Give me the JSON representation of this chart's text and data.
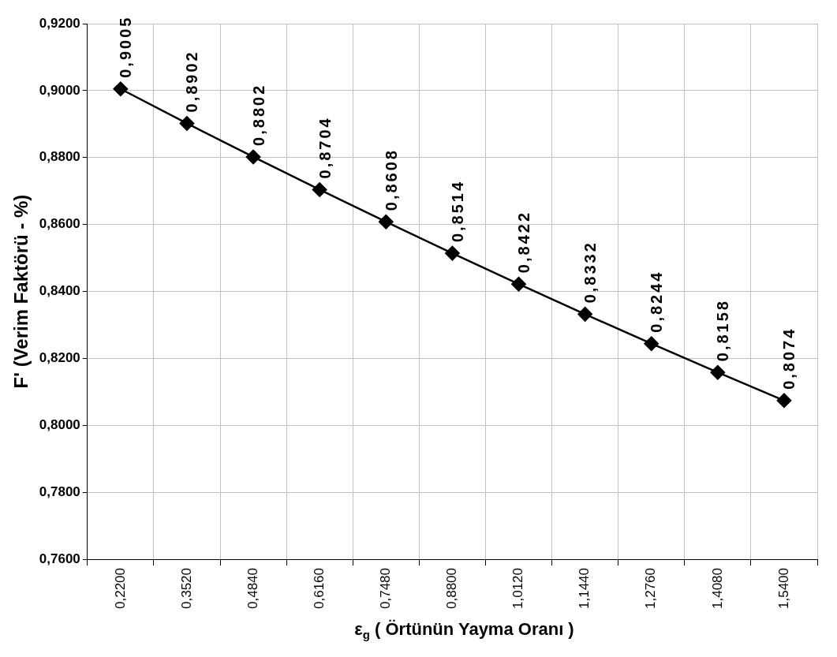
{
  "chart_data": {
    "type": "line",
    "xlabel": "ε$_{g}$ ( Örtünün Yayma Oranı )",
    "ylabel": "F' (Verim Faktörü - %)",
    "categories": [
      "0,2200",
      "0,3520",
      "0,4840",
      "0,6160",
      "0,7480",
      "0,8800",
      "1,0120",
      "1,1440",
      "1,2760",
      "1,4080",
      "1,5400"
    ],
    "series": [
      {
        "color": "#000000",
        "values": [
          0.9005,
          0.8902,
          0.8802,
          0.8704,
          0.8608,
          0.8514,
          0.8422,
          0.8332,
          0.8244,
          0.8158,
          0.8074
        ],
        "value_labels": [
          "0,9005",
          "0,8902",
          "0,8802",
          "0,8704",
          "0,8608",
          "0,8514",
          "0,8422",
          "0,8332",
          "0,8244",
          "0,8158",
          "0,8074"
        ]
      }
    ],
    "ylim": [
      0.76,
      0.92
    ],
    "yticks": [
      {
        "value": 0.76,
        "label": "0,7600"
      },
      {
        "value": 0.78,
        "label": "0,7800"
      },
      {
        "value": 0.8,
        "label": "0,8000"
      },
      {
        "value": 0.82,
        "label": "0,8200"
      },
      {
        "value": 0.84,
        "label": "0,8400"
      },
      {
        "value": 0.86,
        "label": "0,8600"
      },
      {
        "value": 0.88,
        "label": "0,8800"
      },
      {
        "value": 0.9,
        "label": "0,9000"
      },
      {
        "value": 0.92,
        "label": "0,9200"
      }
    ],
    "grid": true,
    "legend": false,
    "marker": "diamond",
    "line_style": "solid"
  }
}
